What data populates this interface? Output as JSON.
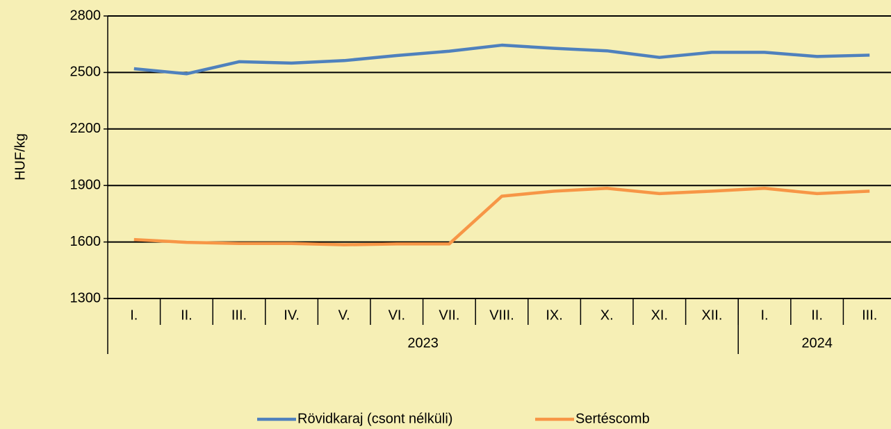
{
  "chart_data": {
    "type": "line",
    "y_label": "HUF/kg",
    "categories": [
      "I.",
      "II.",
      "III.",
      "IV.",
      "V.",
      "VI.",
      "VII.",
      "VIII.",
      "IX.",
      "X.",
      "XI.",
      "XII.",
      "I.",
      "II.",
      "III."
    ],
    "groups": [
      {
        "label": "2023",
        "size": 12
      },
      {
        "label": "2024",
        "size": 3
      }
    ],
    "series": [
      {
        "name": "Rövidkaraj (csont nélküli)",
        "color": "#4f81bd",
        "values": [
          2520,
          2493,
          2557,
          2550,
          2563,
          2590,
          2613,
          2645,
          2628,
          2615,
          2580,
          2607,
          2607,
          2585,
          2592
        ]
      },
      {
        "name": "Sertéscomb",
        "color": "#f79646",
        "values": [
          1613,
          1598,
          1592,
          1592,
          1585,
          1590,
          1590,
          1843,
          1870,
          1885,
          1857,
          1870,
          1885,
          1857,
          1870
        ]
      }
    ],
    "ylim": [
      1300,
      2800
    ],
    "yticks": [
      1300,
      1600,
      1900,
      2200,
      2500,
      2800
    ],
    "grid": true,
    "legend": "bottom"
  }
}
